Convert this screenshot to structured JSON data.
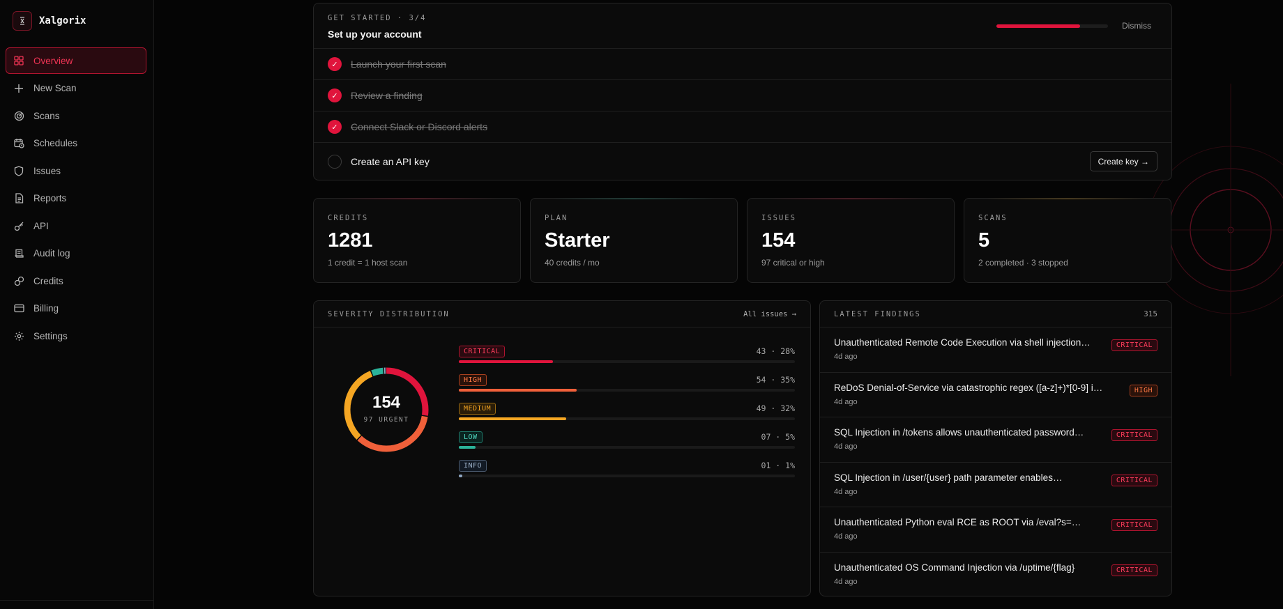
{
  "brand": {
    "name": "Xalgorix"
  },
  "nav": [
    {
      "label": "Overview",
      "icon": "grid-icon",
      "active": true
    },
    {
      "label": "New Scan",
      "icon": "plus-icon"
    },
    {
      "label": "Scans",
      "icon": "radar-icon"
    },
    {
      "label": "Schedules",
      "icon": "calendar-clock-icon"
    },
    {
      "label": "Issues",
      "icon": "shield-icon"
    },
    {
      "label": "Reports",
      "icon": "document-icon"
    },
    {
      "label": "API",
      "icon": "key-icon"
    },
    {
      "label": "Audit log",
      "icon": "scroll-icon"
    },
    {
      "label": "Credits",
      "icon": "coins-icon"
    },
    {
      "label": "Billing",
      "icon": "card-icon"
    },
    {
      "label": "Settings",
      "icon": "gear-icon"
    }
  ],
  "getting_started": {
    "label": "GET STARTED · 3/4",
    "title": "Set up your account",
    "progress": 0.75,
    "dismiss": "Dismiss",
    "steps": [
      {
        "label": "Launch your first scan",
        "done": true
      },
      {
        "label": "Review a finding",
        "done": true
      },
      {
        "label": "Connect Slack or Discord alerts",
        "done": true
      },
      {
        "label": "Create an API key",
        "done": false
      }
    ],
    "create_key": "Create key →"
  },
  "stats": [
    {
      "label": "CREDITS",
      "value": "1281",
      "sub": "1 credit = 1 host scan",
      "accent": "#e0143c"
    },
    {
      "label": "PLAN",
      "value": "Starter",
      "sub": "40 credits / mo",
      "accent": "#2bb39a"
    },
    {
      "label": "ISSUES",
      "value": "154",
      "sub": "97 critical or high",
      "accent": "#e0143c"
    },
    {
      "label": "SCANS",
      "value": "5",
      "sub": "2 completed · 3 stopped",
      "accent": "#e0a020"
    }
  ],
  "severity": {
    "label": "SEVERITY DISTRIBUTION",
    "all_issues": "All issues →",
    "total": "154",
    "urgent": "97 URGENT",
    "rows": [
      {
        "label": "CRITICAL",
        "value": "43 · 28%",
        "pct": 28,
        "class": "crit",
        "color": "#e0143c"
      },
      {
        "label": "HIGH",
        "value": "54 · 35%",
        "pct": 35,
        "class": "high",
        "color": "#f0603a"
      },
      {
        "label": "MEDIUM",
        "value": "49 · 32%",
        "pct": 32,
        "class": "med",
        "color": "#f5a623"
      },
      {
        "label": "LOW",
        "value": "07 · 5%",
        "pct": 5,
        "class": "low",
        "color": "#2bb39a"
      },
      {
        "label": "INFO",
        "value": "01 · 1%",
        "pct": 1,
        "class": "info",
        "color": "#8fa6c2"
      }
    ]
  },
  "findings": {
    "label": "LATEST FINDINGS",
    "count": "315",
    "items": [
      {
        "title": "Unauthenticated Remote Code Execution via shell injection…",
        "time": "4d ago",
        "severity": "CRITICAL",
        "class": "crit"
      },
      {
        "title": "ReDoS Denial-of-Service via catastrophic regex ([a-z]+)*[0-9] i…",
        "time": "4d ago",
        "severity": "HIGH",
        "class": "high"
      },
      {
        "title": "SQL Injection in /tokens allows unauthenticated password…",
        "time": "4d ago",
        "severity": "CRITICAL",
        "class": "crit"
      },
      {
        "title": "SQL Injection in /user/{user} path parameter enables…",
        "time": "4d ago",
        "severity": "CRITICAL",
        "class": "crit"
      },
      {
        "title": "Unauthenticated Python eval RCE as ROOT via /eval?s=…",
        "time": "4d ago",
        "severity": "CRITICAL",
        "class": "crit"
      },
      {
        "title": "Unauthenticated OS Command Injection via /uptime/{flag}",
        "time": "4d ago",
        "severity": "CRITICAL",
        "class": "crit"
      }
    ]
  }
}
